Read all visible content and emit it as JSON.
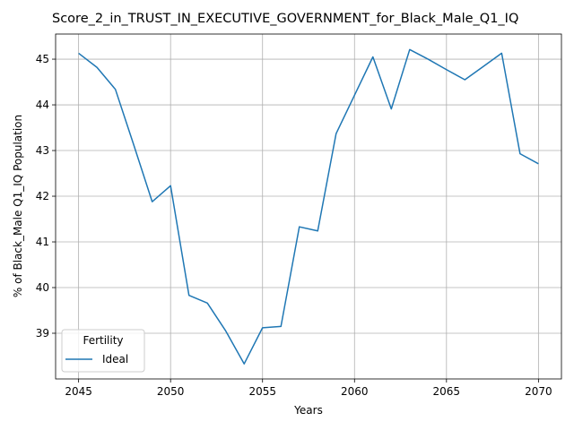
{
  "chart_data": {
    "type": "line",
    "title": "Score_2_in_TRUST_IN_EXECUTIVE_GOVERNMENT_for_Black_Male_Q1_IQ",
    "xlabel": "Years",
    "ylabel": "% of Black_Male Q1_IQ Population",
    "xlim": [
      2043.75,
      2071.25
    ],
    "ylim": [
      38.0,
      45.55
    ],
    "xticks": [
      2045,
      2050,
      2055,
      2060,
      2065,
      2070
    ],
    "yticks": [
      39,
      40,
      41,
      42,
      43,
      44,
      45
    ],
    "grid": true,
    "legend": {
      "title": "Fertility",
      "placement": "lower-left"
    },
    "series": [
      {
        "name": "Ideal",
        "color": "#1f77b4",
        "x": [
          2045,
          2046,
          2047,
          2048,
          2049,
          2050,
          2051,
          2052,
          2053,
          2054,
          2055,
          2056,
          2057,
          2058,
          2059,
          2060,
          2061,
          2062,
          2063,
          2064,
          2065,
          2066,
          2067,
          2068,
          2069,
          2070
        ],
        "values": [
          45.13,
          44.82,
          44.34,
          43.12,
          41.88,
          42.23,
          39.83,
          39.66,
          39.05,
          38.33,
          39.12,
          39.15,
          41.33,
          41.24,
          43.37,
          44.21,
          45.05,
          43.91,
          45.21,
          45.0,
          44.77,
          44.55,
          44.84,
          45.13,
          42.93,
          42.71
        ]
      }
    ]
  }
}
